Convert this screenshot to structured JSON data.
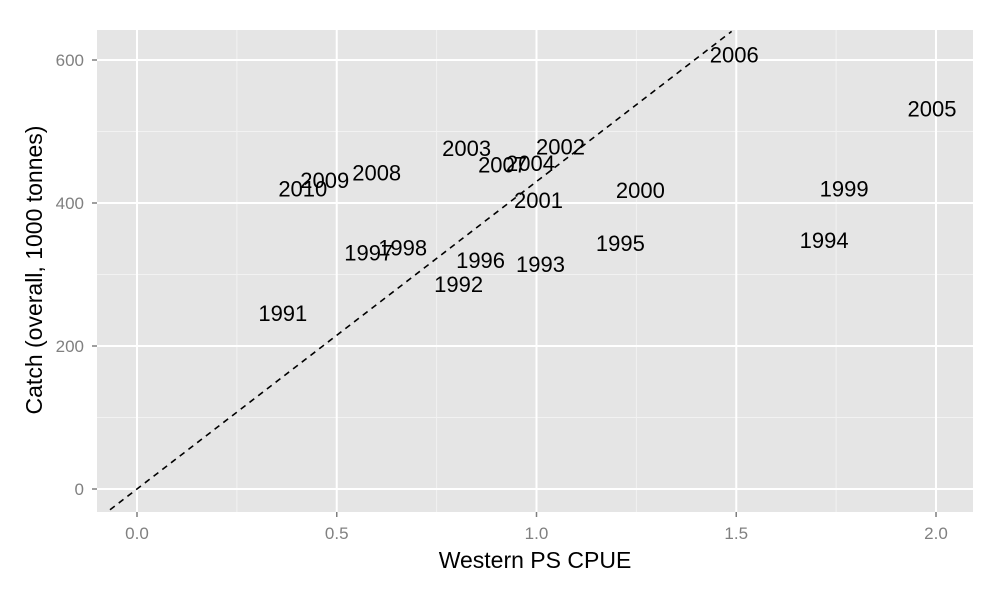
{
  "chart_data": {
    "type": "scatter",
    "title": "",
    "xlabel": "Western PS CPUE",
    "ylabel": "Catch (overall, 1000 tonnes)",
    "xlim": [
      -0.1,
      2.09
    ],
    "ylim": [
      -30,
      640
    ],
    "grid": true,
    "legend": "none",
    "xticks": [
      {
        "value": 0.0,
        "label": "0.0"
      },
      {
        "value": 0.5,
        "label": "0.5"
      },
      {
        "value": 1.0,
        "label": "1.0"
      },
      {
        "value": 1.5,
        "label": "1.5"
      },
      {
        "value": 2.0,
        "label": "2.0"
      }
    ],
    "yticks": [
      {
        "value": 0,
        "label": "0"
      },
      {
        "value": 200,
        "label": "200"
      },
      {
        "value": 400,
        "label": "400"
      },
      {
        "value": 600,
        "label": "600"
      }
    ],
    "points": [
      {
        "label": "1991",
        "x": 0.365,
        "y": 246
      },
      {
        "label": "1992",
        "x": 0.805,
        "y": 287
      },
      {
        "label": "1993",
        "x": 1.01,
        "y": 315
      },
      {
        "label": "1994",
        "x": 1.72,
        "y": 348
      },
      {
        "label": "1995",
        "x": 1.21,
        "y": 344
      },
      {
        "label": "1996",
        "x": 0.86,
        "y": 320
      },
      {
        "label": "1997",
        "x": 0.58,
        "y": 331
      },
      {
        "label": "1998",
        "x": 0.665,
        "y": 338
      },
      {
        "label": "1999",
        "x": 1.77,
        "y": 420
      },
      {
        "label": "2000",
        "x": 1.26,
        "y": 418
      },
      {
        "label": "2001",
        "x": 1.005,
        "y": 404
      },
      {
        "label": "2002",
        "x": 1.06,
        "y": 479
      },
      {
        "label": "2003",
        "x": 0.825,
        "y": 477
      },
      {
        "label": "2004",
        "x": 0.985,
        "y": 456
      },
      {
        "label": "2007",
        "x": 0.915,
        "y": 454
      },
      {
        "label": "2005",
        "x": 1.99,
        "y": 532
      },
      {
        "label": "2006",
        "x": 1.495,
        "y": 608
      },
      {
        "label": "2008",
        "x": 0.6,
        "y": 443
      },
      {
        "label": "2009",
        "x": 0.47,
        "y": 432
      },
      {
        "label": "2010",
        "x": 0.415,
        "y": 420
      }
    ],
    "reference_line": {
      "style": "dashed",
      "slope": 430,
      "intercept": 0
    }
  },
  "colors": {
    "panel_background": "#e5e5e5",
    "major_grid": "#ffffff",
    "minor_grid": "#f2f2f2",
    "tick_color": "#7f7f7f",
    "tick_text": "#808080",
    "text": "#000000",
    "reference_line": "#000000"
  }
}
